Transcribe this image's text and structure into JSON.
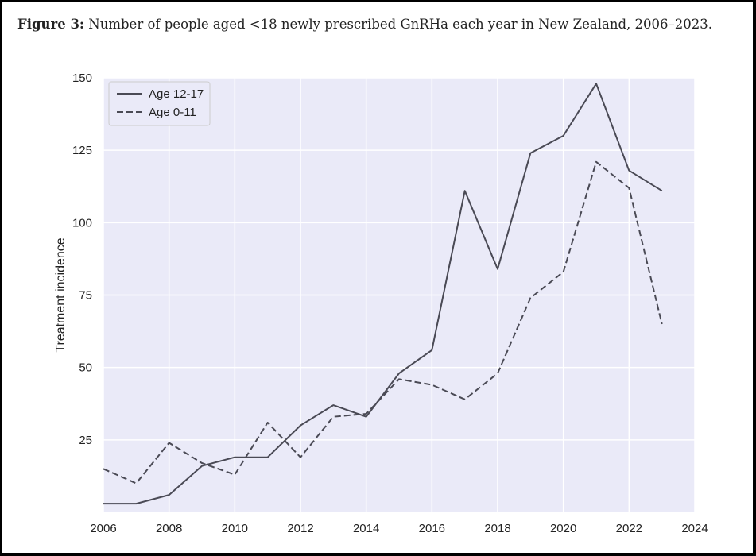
{
  "figure": {
    "label": "Figure 3:",
    "caption": "Number of people aged <18 newly prescribed GnRHa each year in New Zealand, 2006–2023."
  },
  "chart_data": {
    "type": "line",
    "title": "",
    "xlabel": "",
    "ylabel": "Treatment incidence",
    "xlim": [
      2006,
      2024
    ],
    "ylim": [
      0,
      150
    ],
    "xticks": [
      2006,
      2008,
      2010,
      2012,
      2014,
      2016,
      2018,
      2020,
      2022,
      2024
    ],
    "yticks": [
      25,
      50,
      75,
      100,
      125,
      150
    ],
    "grid": true,
    "legend_position": "top-left",
    "colors": {
      "background": "#eaeaf8",
      "grid": "#ffffff",
      "line": "#4a4a55",
      "text": "#222222"
    },
    "series": [
      {
        "name": "Age 12-17",
        "style": "solid",
        "x": [
          2006,
          2007,
          2008,
          2009,
          2010,
          2011,
          2012,
          2013,
          2014,
          2015,
          2016,
          2017,
          2018,
          2019,
          2020,
          2021,
          2022,
          2023
        ],
        "values": [
          3,
          3,
          6,
          16,
          19,
          19,
          30,
          37,
          33,
          48,
          56,
          111,
          84,
          124,
          130,
          148,
          118,
          111
        ]
      },
      {
        "name": "Age 0-11",
        "style": "dashed",
        "x": [
          2006,
          2007,
          2008,
          2009,
          2010,
          2011,
          2012,
          2013,
          2014,
          2015,
          2016,
          2017,
          2018,
          2019,
          2020,
          2021,
          2022,
          2023
        ],
        "values": [
          15,
          10,
          24,
          17,
          13,
          31,
          19,
          33,
          34,
          46,
          44,
          39,
          48,
          74,
          83,
          121,
          112,
          65
        ]
      }
    ]
  }
}
